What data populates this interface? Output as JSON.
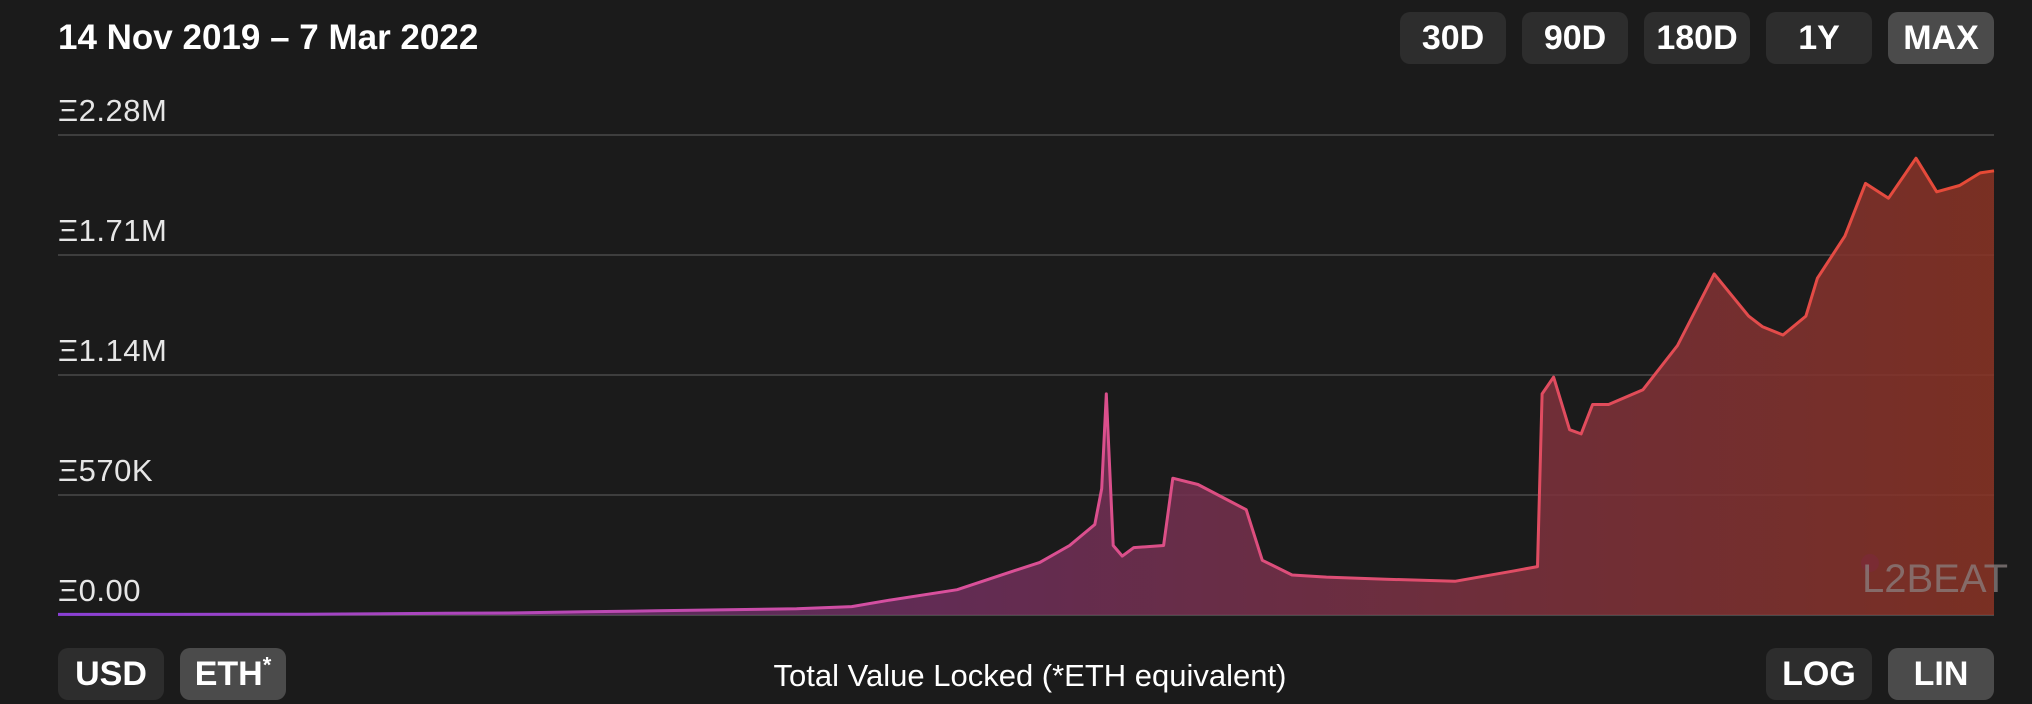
{
  "header": {
    "date_range": "14 Nov 2019 – 7 Mar 2022",
    "range_buttons": [
      {
        "label": "30D",
        "active": false
      },
      {
        "label": "90D",
        "active": false
      },
      {
        "label": "180D",
        "active": false
      },
      {
        "label": "1Y",
        "active": false
      },
      {
        "label": "MAX",
        "active": true
      }
    ]
  },
  "footer": {
    "currency_buttons": [
      {
        "label": "USD",
        "active": false
      },
      {
        "label": "ETH",
        "superscript": "*",
        "active": true
      }
    ],
    "title": "Total Value Locked (*ETH equivalent)",
    "scale_buttons": [
      {
        "label": "LOG",
        "active": false
      },
      {
        "label": "LIN",
        "active": true
      }
    ]
  },
  "watermark": {
    "text": "L2BEAT"
  },
  "colors": {
    "background": "#1b1b1b",
    "grid": "#4a4a4a",
    "line_start": "#8a3fd6",
    "line_mid": "#d9509e",
    "line_end": "#e64a34"
  },
  "chart_data": {
    "type": "area",
    "ylim": [
      0,
      2280000
    ],
    "scale": "linear",
    "grid": true,
    "y_ticks": [
      {
        "value": 0,
        "label": "Ξ0.00"
      },
      {
        "value": 570000,
        "label": "Ξ570K"
      },
      {
        "value": 1140000,
        "label": "Ξ1.14M"
      },
      {
        "value": 1710000,
        "label": "Ξ1.71M"
      },
      {
        "value": 2280000,
        "label": "Ξ2.28M"
      }
    ],
    "series": [
      {
        "x": [
          "2019-11-14",
          "2020-01-01",
          "2020-03-01",
          "2020-05-01",
          "2020-06-01",
          "2020-07-01",
          "2020-08-01",
          "2020-09-01",
          "2020-10-01",
          "2020-10-25",
          "2020-11-10",
          "2020-12-10",
          "2021-01-01",
          "2021-01-15",
          "2021-01-28",
          "2021-02-08",
          "2021-02-11",
          "2021-02-13",
          "2021-02-16",
          "2021-02-20",
          "2021-02-25",
          "2021-03-10",
          "2021-03-14",
          "2021-03-25",
          "2021-04-15",
          "2021-04-22",
          "2021-05-05",
          "2021-05-20",
          "2021-06-15",
          "2021-07-15",
          "2021-08-10",
          "2021-08-20",
          "2021-08-22",
          "2021-08-27",
          "2021-09-03",
          "2021-09-08",
          "2021-09-13",
          "2021-09-20",
          "2021-10-05",
          "2021-10-20",
          "2021-11-05",
          "2021-11-20",
          "2021-11-26",
          "2021-12-05",
          "2021-12-15",
          "2021-12-20",
          "2022-01-01",
          "2022-01-10",
          "2022-01-20",
          "2022-02-01",
          "2022-02-10",
          "2022-02-20",
          "2022-03-01",
          "2022-03-07"
        ],
        "values": [
          3000,
          3000,
          4000,
          8000,
          10000,
          15000,
          20000,
          25000,
          30000,
          40000,
          70000,
          120000,
          200000,
          250000,
          330000,
          430000,
          600000,
          1050000,
          330000,
          280000,
          320000,
          330000,
          650000,
          620000,
          500000,
          260000,
          190000,
          180000,
          170000,
          160000,
          210000,
          230000,
          1050000,
          1130000,
          880000,
          860000,
          1000000,
          1000000,
          1070000,
          1280000,
          1620000,
          1420000,
          1370000,
          1330000,
          1420000,
          1600000,
          1800000,
          2050000,
          1980000,
          2170000,
          2010000,
          2040000,
          2100000,
          2110000
        ]
      }
    ]
  }
}
